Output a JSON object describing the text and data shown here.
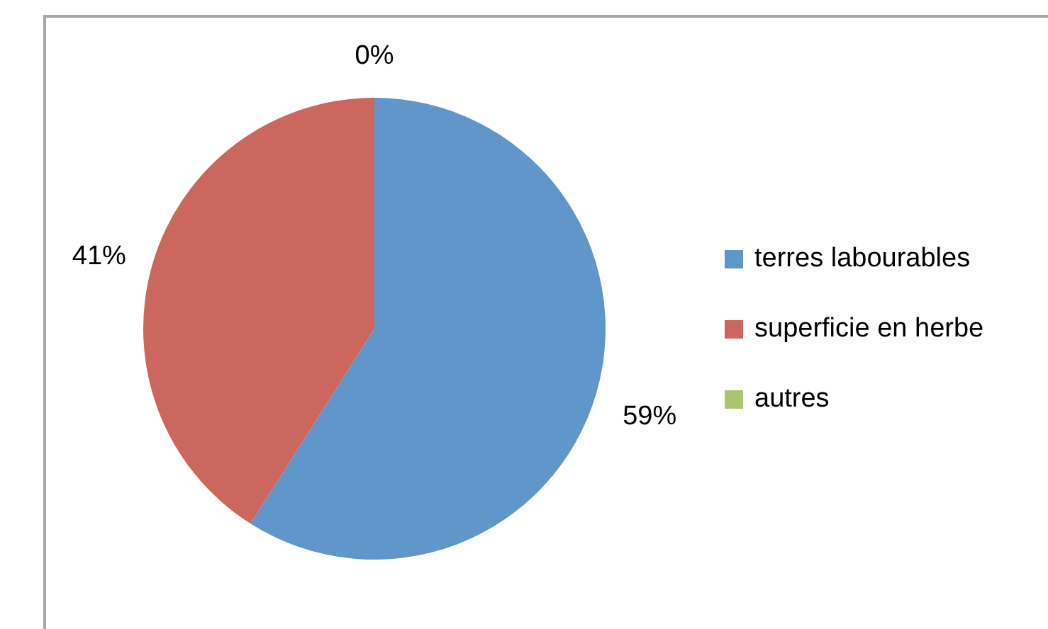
{
  "chart_data": {
    "type": "pie",
    "categories": [
      "terres labourables",
      "superficie en herbe",
      "autres"
    ],
    "values": [
      59,
      41,
      0
    ],
    "colors": [
      "#6096c9",
      "#cc675f",
      "#abc56f"
    ],
    "value_labels": [
      "59%",
      "41%",
      "0%"
    ],
    "legend": "right"
  }
}
